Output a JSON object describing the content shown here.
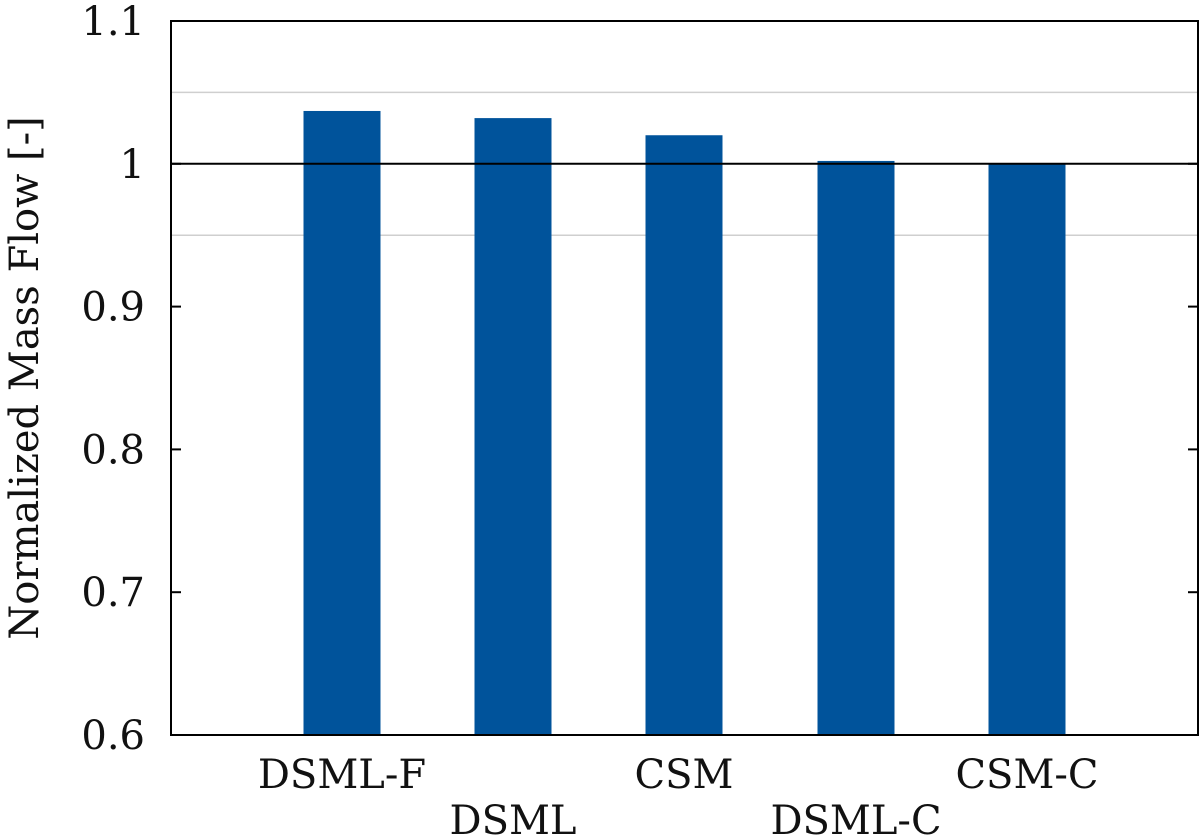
{
  "chart_data": {
    "type": "bar",
    "title": "",
    "xlabel": "",
    "ylabel": "Normalized Mass Flow [-]",
    "categories": [
      "DSML-F",
      "DSML",
      "CSM",
      "DSML-C",
      "CSM-C"
    ],
    "values": [
      1.037,
      1.032,
      1.02,
      1.002,
      1.0
    ],
    "ylim": [
      0.6,
      1.1
    ],
    "yticks": [
      "0.6",
      "0.7",
      "0.8",
      "0.9",
      "1",
      "1.1"
    ],
    "reference_line": 1.0,
    "gridlines": [
      0.95,
      1.05
    ],
    "grid": false,
    "legend": "none",
    "colors": {
      "bar": "#00539b",
      "axis": "#000000",
      "gridline": "#cfcfcf"
    }
  }
}
